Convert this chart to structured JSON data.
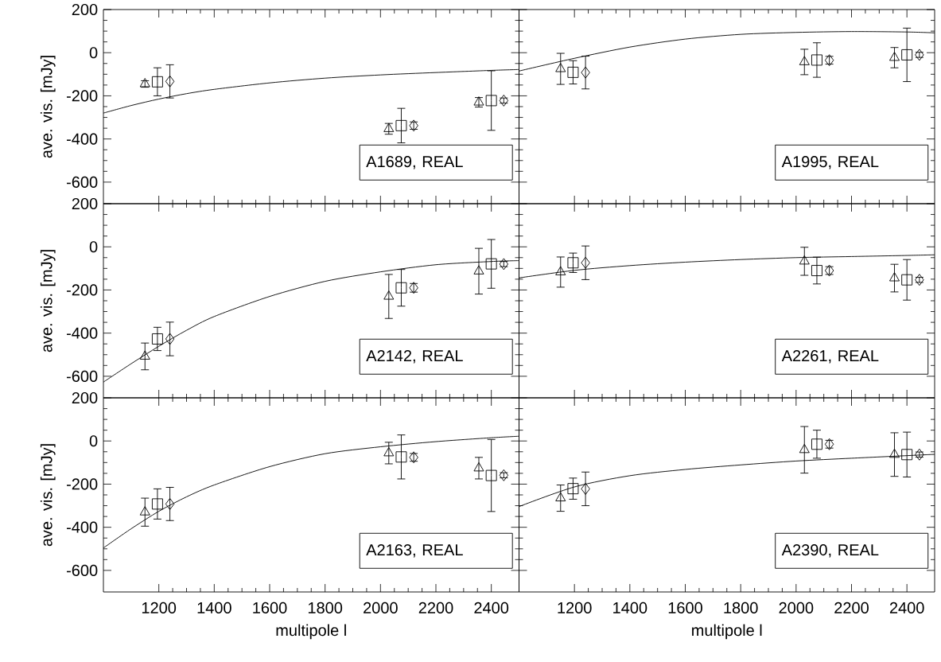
{
  "chart_data": [
    {
      "type": "scatter",
      "ylabel": "ave. vis. [mJy]",
      "annotations": [
        "A1689, REAL"
      ],
      "xlim": [
        1000,
        2500
      ],
      "ylim": [
        -700,
        200
      ],
      "xticks": [
        1200,
        1400,
        1600,
        1800,
        2000,
        2200,
        2400
      ],
      "yticks": [
        -600,
        -400,
        -200,
        0,
        200
      ],
      "tick_labels": "y",
      "series": [
        {
          "type": "line",
          "color": "#000000",
          "marker": "none",
          "line_style": "solid",
          "x": [
            1000,
            1100,
            1200,
            1300,
            1400,
            1600,
            1800,
            2000,
            2200,
            2400,
            2500
          ],
          "values": [
            -280,
            -245,
            -215,
            -190,
            -170,
            -140,
            -118,
            -103,
            -92,
            -82,
            -78
          ]
        },
        {
          "color": "#000000",
          "marker": "triangle",
          "x": [
            1150,
            2030,
            2355
          ],
          "values": [
            -145,
            -353,
            -230
          ],
          "errors": [
            15,
            25,
            22
          ]
        },
        {
          "color": "#000000",
          "marker": "square",
          "x": [
            1195,
            2075,
            2400
          ],
          "values": [
            -135,
            -338,
            -222
          ],
          "errors": [
            65,
            80,
            138
          ]
        },
        {
          "color": "#000000",
          "marker": "diamond",
          "x": [
            1240,
            2120,
            2445
          ],
          "values": [
            -133,
            -338,
            -222
          ],
          "errors": [
            77,
            17,
            12
          ]
        }
      ]
    },
    {
      "type": "scatter",
      "annotations": [
        "A1995, REAL"
      ],
      "xlim": [
        1000,
        2500
      ],
      "ylim": [
        -700,
        200
      ],
      "xticks": [
        1200,
        1400,
        1600,
        1800,
        2000,
        2200,
        2400
      ],
      "yticks": [
        -600,
        -400,
        -200,
        0,
        200
      ],
      "tick_labels": false,
      "series": [
        {
          "type": "line",
          "color": "#000000",
          "marker": "none",
          "line_style": "solid",
          "x": [
            1000,
            1200,
            1400,
            1600,
            1800,
            2000,
            2200,
            2400,
            2500
          ],
          "values": [
            -85,
            -26,
            26,
            63,
            85,
            94,
            98,
            96,
            92
          ]
        },
        {
          "color": "#000000",
          "marker": "triangle",
          "x": [
            1150,
            2030,
            2355
          ],
          "values": [
            -75,
            -43,
            -23
          ],
          "errors": [
            72,
            59,
            47
          ]
        },
        {
          "color": "#000000",
          "marker": "square",
          "x": [
            1195,
            2075,
            2400
          ],
          "values": [
            -91,
            -34,
            -10
          ],
          "errors": [
            54,
            80,
            124
          ]
        },
        {
          "color": "#000000",
          "marker": "diamond",
          "x": [
            1240,
            2120,
            2445
          ],
          "values": [
            -92,
            -35,
            -10
          ],
          "errors": [
            76,
            18,
            12
          ]
        }
      ]
    },
    {
      "type": "scatter",
      "ylabel": "ave. vis. [mJy]",
      "annotations": [
        "A2142, REAL"
      ],
      "xlim": [
        1000,
        2500
      ],
      "ylim": [
        -700,
        200
      ],
      "xticks": [
        1200,
        1400,
        1600,
        1800,
        2000,
        2200,
        2400
      ],
      "yticks": [
        -600,
        -400,
        -200,
        0,
        200
      ],
      "tick_labels": "y",
      "series": [
        {
          "type": "line",
          "color": "#000000",
          "marker": "none",
          "line_style": "solid",
          "x": [
            1000,
            1100,
            1200,
            1300,
            1400,
            1600,
            1800,
            2000,
            2200,
            2400,
            2500
          ],
          "values": [
            -627,
            -542,
            -461,
            -387,
            -323,
            -230,
            -160,
            -116,
            -83,
            -68,
            -64
          ]
        },
        {
          "color": "#000000",
          "marker": "triangle",
          "x": [
            1150,
            2030,
            2355
          ],
          "values": [
            -508,
            -230,
            -113
          ],
          "errors": [
            62,
            102,
            106
          ]
        },
        {
          "color": "#000000",
          "marker": "square",
          "x": [
            1195,
            2075,
            2400
          ],
          "values": [
            -427,
            -190,
            -79
          ],
          "errors": [
            54,
            85,
            113
          ]
        },
        {
          "color": "#000000",
          "marker": "diamond",
          "x": [
            1240,
            2120,
            2445
          ],
          "values": [
            -427,
            -190,
            -80
          ],
          "errors": [
            78,
            20,
            12
          ]
        }
      ]
    },
    {
      "type": "scatter",
      "annotations": [
        "A2261, REAL"
      ],
      "xlim": [
        1000,
        2500
      ],
      "ylim": [
        -700,
        200
      ],
      "xticks": [
        1200,
        1400,
        1600,
        1800,
        2000,
        2200,
        2400
      ],
      "yticks": [
        -600,
        -400,
        -200,
        0,
        200
      ],
      "tick_labels": false,
      "series": [
        {
          "type": "line",
          "color": "#000000",
          "marker": "none",
          "line_style": "solid",
          "x": [
            1000,
            1200,
            1400,
            1600,
            1800,
            2000,
            2200,
            2400,
            2500
          ],
          "values": [
            -144,
            -109,
            -87,
            -71,
            -59,
            -50,
            -45,
            -40,
            -37
          ]
        },
        {
          "color": "#000000",
          "marker": "triangle",
          "x": [
            1150,
            2030,
            2355
          ],
          "values": [
            -117,
            -67,
            -145
          ],
          "errors": [
            70,
            65,
            64
          ]
        },
        {
          "color": "#000000",
          "marker": "square",
          "x": [
            1195,
            2075,
            2400
          ],
          "values": [
            -74,
            -110,
            -153
          ],
          "errors": [
            45,
            62,
            94
          ]
        },
        {
          "color": "#000000",
          "marker": "diamond",
          "x": [
            1240,
            2120,
            2445
          ],
          "values": [
            -74,
            -110,
            -153
          ],
          "errors": [
            78,
            18,
            12
          ]
        }
      ]
    },
    {
      "type": "scatter",
      "xlabel": "multipole l",
      "ylabel": "ave. vis. [mJy]",
      "annotations": [
        "A2163, REAL"
      ],
      "xlim": [
        1000,
        2500
      ],
      "ylim": [
        -700,
        200
      ],
      "xticks": [
        1200,
        1400,
        1600,
        1800,
        2000,
        2200,
        2400
      ],
      "yticks": [
        -600,
        -400,
        -200,
        0,
        200
      ],
      "series": [
        {
          "type": "line",
          "color": "#000000",
          "marker": "none",
          "line_style": "solid",
          "x": [
            1000,
            1100,
            1200,
            1300,
            1400,
            1600,
            1800,
            2000,
            2200,
            2400,
            2500
          ],
          "values": [
            -496,
            -407,
            -326,
            -259,
            -204,
            -119,
            -59,
            -27,
            -3,
            15,
            22
          ]
        },
        {
          "color": "#000000",
          "marker": "triangle",
          "x": [
            1150,
            2030,
            2355
          ],
          "values": [
            -330,
            -56,
            -126
          ],
          "errors": [
            65,
            50,
            50
          ]
        },
        {
          "color": "#000000",
          "marker": "square",
          "x": [
            1195,
            2075,
            2400
          ],
          "values": [
            -292,
            -74,
            -160
          ],
          "errors": [
            70,
            102,
            167
          ]
        },
        {
          "color": "#000000",
          "marker": "diamond",
          "x": [
            1240,
            2120,
            2445
          ],
          "values": [
            -292,
            -76,
            -159
          ],
          "errors": [
            77,
            18,
            12
          ]
        }
      ]
    },
    {
      "type": "scatter",
      "xlabel": "multipole l",
      "annotations": [
        "A2390, REAL"
      ],
      "xlim": [
        1000,
        2500
      ],
      "ylim": [
        -700,
        200
      ],
      "xticks": [
        1200,
        1400,
        1600,
        1800,
        2000,
        2200,
        2400
      ],
      "yticks": [
        -600,
        -400,
        -200,
        0,
        200
      ],
      "tick_labels": "x",
      "series": [
        {
          "type": "line",
          "color": "#000000",
          "marker": "none",
          "line_style": "solid",
          "x": [
            1000,
            1200,
            1400,
            1600,
            1800,
            2000,
            2200,
            2400,
            2500
          ],
          "values": [
            -304,
            -213,
            -161,
            -132,
            -111,
            -93,
            -80,
            -68,
            -62
          ]
        },
        {
          "color": "#000000",
          "marker": "triangle",
          "x": [
            1150,
            2030,
            2355
          ],
          "values": [
            -265,
            -41,
            -63
          ],
          "errors": [
            61,
            108,
            101
          ]
        },
        {
          "color": "#000000",
          "marker": "square",
          "x": [
            1195,
            2075,
            2400
          ],
          "values": [
            -221,
            -15,
            -63
          ],
          "errors": [
            49,
            65,
            104
          ]
        },
        {
          "color": "#000000",
          "marker": "diamond",
          "x": [
            1240,
            2120,
            2445
          ],
          "values": [
            -222,
            -15,
            -63
          ],
          "errors": [
            78,
            18,
            12
          ]
        }
      ]
    }
  ]
}
